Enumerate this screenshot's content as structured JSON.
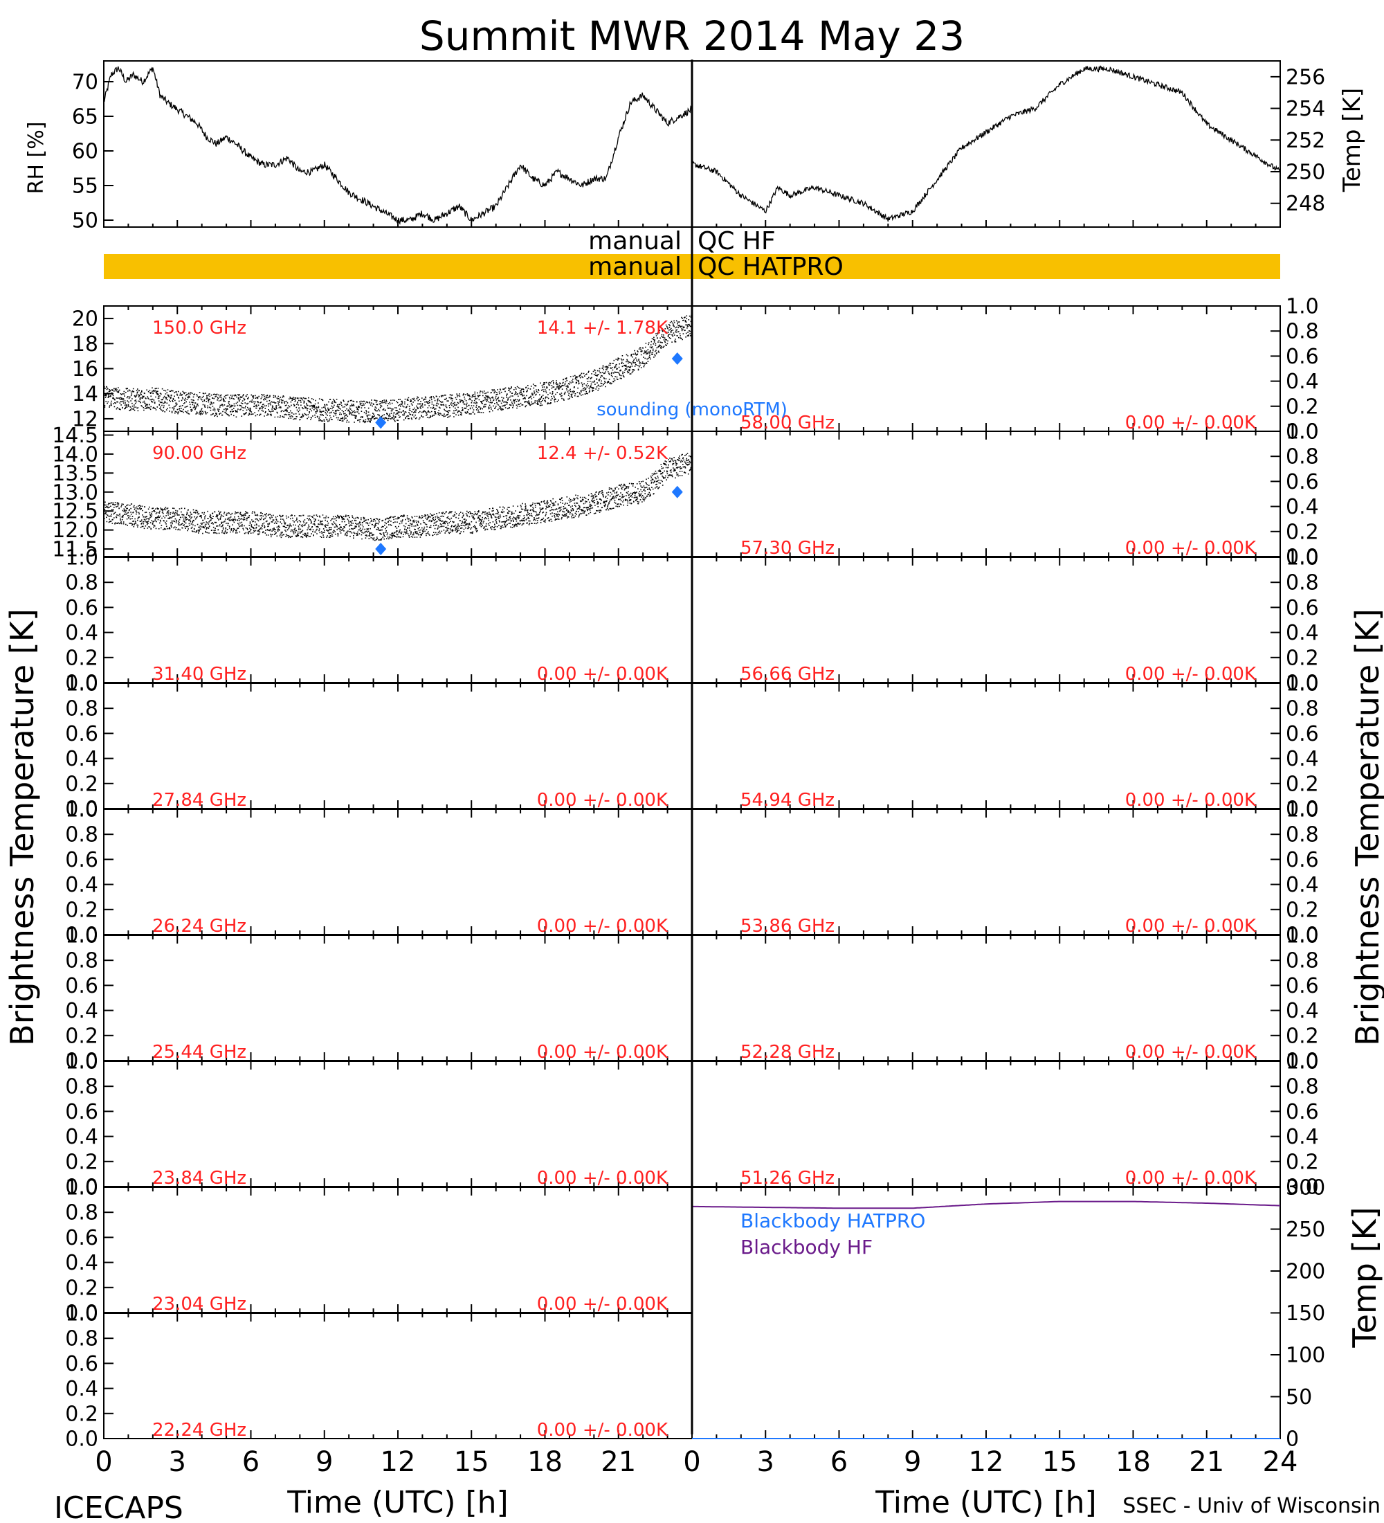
{
  "title": "Summit MWR 2014 May 23",
  "footer": {
    "left": "ICECAPS",
    "right": "SSEC - Univ of Wisconsin",
    "xlabel_left": "Time (UTC) [h]",
    "xlabel_right": "Time (UTC) [h]"
  },
  "side_labels": {
    "rh": "RH [%]",
    "temp_top": "Temp [K]",
    "tb_left": "Brightness Temperature [K]",
    "tb_right": "Brightness Temperature [K]",
    "temp_bottom": "Temp [K]"
  },
  "qc": {
    "hf_label_left": "manual",
    "hf_label_right": "QC HF",
    "hatpro_label_left": "manual",
    "hatpro_label_right": "QC HATPRO",
    "hatpro_color": "#f8c000"
  },
  "colors": {
    "annotation": "#ff2020",
    "sounding": "#1e78ff",
    "blackbody_hf": "#6a1a8a",
    "data": "#000000"
  },
  "chart_data": [
    {
      "id": "rh",
      "type": "line",
      "ylabel": "RH [%]",
      "xlim": [
        0,
        12
      ],
      "ylim": [
        49,
        73
      ],
      "yticks": [
        "50",
        "55",
        "60",
        "65",
        "70"
      ],
      "x": [
        0,
        0.3,
        0.6,
        0.9,
        1.2,
        1.6,
        2.0,
        2.3,
        2.6,
        3.0,
        3.4,
        3.8,
        4.2,
        4.6,
        5.0,
        5.4,
        5.7,
        6.0,
        6.5,
        7.0,
        7.5,
        8.0,
        8.5,
        9.0,
        9.5,
        10.0,
        10.5,
        11.0,
        11.5,
        12.0
      ],
      "values": [
        67,
        71,
        72,
        70,
        71,
        70,
        72,
        68,
        67,
        66,
        65,
        64,
        62,
        61,
        62,
        61,
        60,
        59,
        58,
        58,
        59,
        57,
        57,
        58,
        56,
        54,
        53,
        52,
        51,
        50
      ]
    },
    {
      "id": "rh_continued",
      "type": "line",
      "xlim": [
        12,
        24
      ],
      "ylim": [
        49,
        73
      ],
      "x": [
        12,
        12.5,
        13,
        13.5,
        14,
        14.5,
        15,
        15.5,
        16,
        16.5,
        17,
        17.5,
        18,
        18.5,
        19,
        19.5,
        20,
        20.5,
        21,
        21.5,
        22,
        22.5,
        23,
        23.5,
        24
      ],
      "values": [
        50,
        50,
        51,
        50,
        51,
        52,
        50,
        51,
        52,
        55,
        58,
        56,
        55,
        57,
        56,
        55,
        56,
        56,
        62,
        67,
        68,
        66,
        64,
        65,
        66
      ]
    },
    {
      "id": "air_temp",
      "type": "line",
      "ylabel": "Temp [K]",
      "xlim": [
        0,
        24
      ],
      "ylim": [
        246.5,
        257
      ],
      "yticks": [
        "248",
        "250",
        "252",
        "254",
        "256"
      ],
      "x": [
        0,
        1,
        2,
        3,
        3.5,
        4,
        5,
        6,
        7,
        8,
        9,
        10,
        11,
        12,
        13,
        14,
        15,
        16,
        17,
        18,
        19,
        20,
        21,
        22,
        23,
        24
      ],
      "values": [
        250.5,
        250,
        248.5,
        247.5,
        249,
        248.5,
        249,
        248.5,
        248,
        247,
        247.5,
        249.5,
        251.5,
        252.5,
        253.5,
        254,
        255.5,
        256.5,
        256.5,
        256,
        255.5,
        255,
        253,
        252,
        251,
        250
      ]
    },
    {
      "id": "tb_150",
      "type": "scatter",
      "label": "150.0 GHz",
      "stat": "14.1 +/-  1.78K",
      "xlim": [
        0,
        24
      ],
      "ylim": [
        11,
        21
      ],
      "yticks": [
        "12",
        "14",
        "16",
        "18",
        "20"
      ],
      "x": [
        0,
        1,
        2,
        3,
        4,
        5,
        6,
        7,
        8,
        9,
        10,
        11,
        12,
        13,
        14,
        15,
        16,
        17,
        18,
        19,
        20,
        21,
        22,
        23,
        24
      ],
      "values": [
        13.8,
        13.5,
        13.6,
        13.3,
        13.2,
        13.0,
        13.1,
        13.0,
        12.8,
        12.7,
        12.6,
        12.6,
        12.7,
        12.9,
        13.0,
        13.2,
        13.5,
        13.8,
        14.0,
        14.5,
        15.0,
        16.0,
        17.0,
        18.8,
        19.5
      ],
      "sounding": {
        "label": "sounding (monoRTM)",
        "x": [
          11.3,
          23.4
        ],
        "values": [
          11.7,
          16.8
        ]
      }
    },
    {
      "id": "tb_90",
      "type": "scatter",
      "label": "90.00 GHz",
      "stat": "12.4 +/-  0.52K",
      "xlim": [
        0,
        24
      ],
      "ylim": [
        11.3,
        14.6
      ],
      "yticks": [
        "11.5",
        "12.0",
        "12.5",
        "13.0",
        "13.5",
        "14.0",
        "14.5"
      ],
      "x": [
        0,
        1,
        2,
        3,
        4,
        5,
        6,
        7,
        8,
        9,
        10,
        11,
        12,
        13,
        14,
        15,
        16,
        17,
        18,
        19,
        20,
        21,
        22,
        23,
        24
      ],
      "values": [
        12.5,
        12.4,
        12.3,
        12.3,
        12.2,
        12.2,
        12.2,
        12.1,
        12.1,
        12.1,
        12.1,
        12.0,
        12.1,
        12.1,
        12.2,
        12.2,
        12.3,
        12.4,
        12.5,
        12.6,
        12.7,
        12.9,
        13.0,
        13.6,
        13.8
      ],
      "sounding": {
        "x": [
          11.3,
          23.4
        ],
        "values": [
          11.5,
          13.0
        ]
      }
    },
    {
      "id": "tb_31_40",
      "type": "line",
      "label": "31.40 GHz",
      "stat": "0.00 +/-  0.00K",
      "ylim": [
        0,
        1
      ],
      "values": []
    },
    {
      "id": "tb_27_84",
      "type": "line",
      "label": "27.84 GHz",
      "stat": "0.00 +/-  0.00K",
      "ylim": [
        0,
        1
      ],
      "values": []
    },
    {
      "id": "tb_26_24",
      "type": "line",
      "label": "26.24 GHz",
      "stat": "0.00 +/-  0.00K",
      "ylim": [
        0,
        1
      ],
      "values": []
    },
    {
      "id": "tb_25_44",
      "type": "line",
      "label": "25.44 GHz",
      "stat": "0.00 +/-  0.00K",
      "ylim": [
        0,
        1
      ],
      "values": []
    },
    {
      "id": "tb_23_84",
      "type": "line",
      "label": "23.84 GHz",
      "stat": "0.00 +/-  0.00K",
      "ylim": [
        0,
        1
      ],
      "values": []
    },
    {
      "id": "tb_23_04",
      "type": "line",
      "label": "23.04 GHz",
      "stat": "0.00 +/-  0.00K",
      "ylim": [
        0,
        1
      ],
      "values": []
    },
    {
      "id": "tb_22_24",
      "type": "line",
      "label": "22.24 GHz",
      "stat": "0.00 +/-  0.00K",
      "ylim": [
        0,
        1
      ],
      "values": []
    },
    {
      "id": "tb_58_00",
      "type": "line",
      "label": "58.00 GHz",
      "stat": "0.00 +/-  0.00K",
      "ylim": [
        0,
        1
      ],
      "values": []
    },
    {
      "id": "tb_57_30",
      "type": "line",
      "label": "57.30 GHz",
      "stat": "0.00 +/-  0.00K",
      "ylim": [
        0,
        1
      ],
      "values": []
    },
    {
      "id": "tb_56_66",
      "type": "line",
      "label": "56.66 GHz",
      "stat": "0.00 +/-  0.00K",
      "ylim": [
        0,
        1
      ],
      "values": []
    },
    {
      "id": "tb_54_94",
      "type": "line",
      "label": "54.94 GHz",
      "stat": "0.00 +/-  0.00K",
      "ylim": [
        0,
        1
      ],
      "values": []
    },
    {
      "id": "tb_53_86",
      "type": "line",
      "label": "53.86 GHz",
      "stat": "0.00 +/-  0.00K",
      "ylim": [
        0,
        1
      ],
      "values": []
    },
    {
      "id": "tb_52_28",
      "type": "line",
      "label": "52.28 GHz",
      "stat": "0.00 +/-  0.00K",
      "ylim": [
        0,
        1
      ],
      "values": []
    },
    {
      "id": "tb_51_26",
      "type": "line",
      "label": "51.26 GHz",
      "stat": "0.00 +/-  0.00K",
      "ylim": [
        0,
        1
      ],
      "values": []
    },
    {
      "id": "blackbody",
      "type": "line",
      "xlim": [
        0,
        24
      ],
      "ylim": [
        0,
        300
      ],
      "yticks": [
        "0",
        "50",
        "100",
        "150",
        "200",
        "250",
        "300"
      ],
      "series": [
        {
          "name": "Blackbody HATPRO",
          "x": [
            0,
            24
          ],
          "values": [
            0,
            0
          ]
        },
        {
          "name": "Blackbody HF",
          "x": [
            0,
            3,
            6,
            9,
            12,
            15,
            18,
            21,
            24
          ],
          "values": [
            277,
            276,
            275,
            275,
            280,
            283,
            283,
            281,
            278
          ]
        }
      ]
    }
  ],
  "axes": {
    "unit_ticks": [
      "0.0",
      "0.2",
      "0.4",
      "0.6",
      "0.8",
      "1.0"
    ],
    "time_ticks_left": [
      "0",
      "3",
      "6",
      "9",
      "12",
      "15",
      "18",
      "21"
    ],
    "time_ticks_right": [
      "0",
      "3",
      "6",
      "9",
      "12",
      "15",
      "18",
      "21",
      "24"
    ]
  }
}
